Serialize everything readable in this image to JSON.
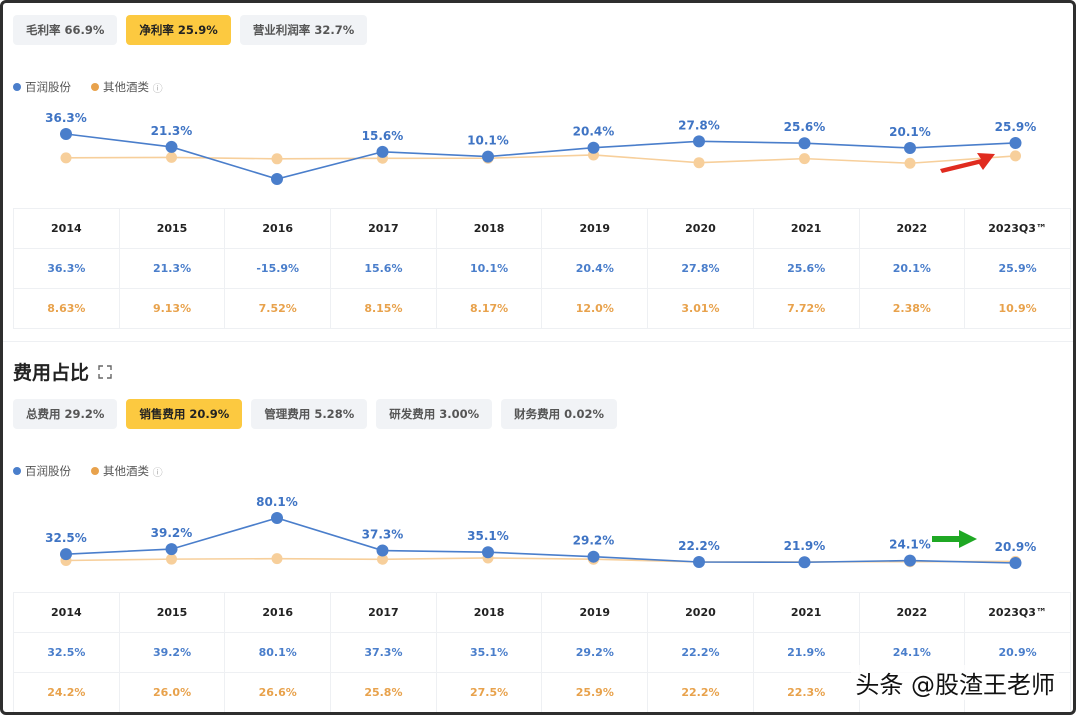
{
  "top": {
    "tabs": [
      {
        "label": "毛利率 66.9%",
        "active": false
      },
      {
        "label": "净利率 25.9%",
        "active": true
      },
      {
        "label": "营业利润率 32.7%",
        "active": false
      }
    ]
  },
  "bottom": {
    "title": "费用占比",
    "tabs": [
      {
        "label": "总费用 29.2%",
        "active": false
      },
      {
        "label": "销售费用 20.9%",
        "active": true
      },
      {
        "label": "管理费用 5.28%",
        "active": false
      },
      {
        "label": "研发费用 3.00%",
        "active": false
      },
      {
        "label": "财务费用 0.02%",
        "active": false
      }
    ]
  },
  "legend": {
    "s1": "百润股份",
    "s2": "其他酒类",
    "info_icon": "ⓘ"
  },
  "colors": {
    "s1": "#4a7ecb",
    "s2": "#f7cf9b",
    "s2_text": "#e8a24c",
    "active_tab": "#fcc940",
    "red_arrow": "#e02b1f",
    "green_arrow": "#1fa824"
  },
  "watermark": "头条 @股渣王老师",
  "chart_data": [
    {
      "type": "line",
      "categories": [
        "2014",
        "2015",
        "2016",
        "2017",
        "2018",
        "2019",
        "2020",
        "2021",
        "2022",
        "2023Q3™"
      ],
      "series": [
        {
          "name": "百润股份",
          "values": [
            36.3,
            21.3,
            -15.9,
            15.6,
            10.1,
            20.4,
            27.8,
            25.6,
            20.1,
            25.9
          ],
          "labels": [
            "36.3%",
            "21.3%",
            "-15.9%",
            "15.6%",
            "10.1%",
            "20.4%",
            "27.8%",
            "25.6%",
            "20.1%",
            "25.9%"
          ]
        },
        {
          "name": "其他酒类",
          "values": [
            8.63,
            9.13,
            7.52,
            8.15,
            8.17,
            12.0,
            3.01,
            7.72,
            2.38,
            10.9
          ],
          "labels": [
            "8.63%",
            "9.13%",
            "7.52%",
            "8.15%",
            "8.17%",
            "12.0%",
            "3.01%",
            "7.72%",
            "2.38%",
            "10.9%"
          ]
        }
      ],
      "point_labels": [
        "36.3%",
        "21.3%",
        "",
        "15.6%",
        "10.1%",
        "20.4%",
        "27.8%",
        "25.6%",
        "20.1%",
        "25.9%"
      ]
    },
    {
      "type": "line",
      "categories": [
        "2014",
        "2015",
        "2016",
        "2017",
        "2018",
        "2019",
        "2020",
        "2021",
        "2022",
        "2023Q3™"
      ],
      "series": [
        {
          "name": "百润股份",
          "values": [
            32.5,
            39.2,
            80.1,
            37.3,
            35.1,
            29.2,
            22.2,
            21.9,
            24.1,
            20.9
          ],
          "labels": [
            "32.5%",
            "39.2%",
            "80.1%",
            "37.3%",
            "35.1%",
            "29.2%",
            "22.2%",
            "21.9%",
            "24.1%",
            "20.9%"
          ]
        },
        {
          "name": "其他酒类",
          "values": [
            24.2,
            26.0,
            26.6,
            25.8,
            27.5,
            25.9,
            22.2,
            22.3,
            22.6,
            23.0
          ],
          "labels": [
            "24.2%",
            "26.0%",
            "26.6%",
            "25.8%",
            "27.5%",
            "25.9%",
            "22.2%",
            "22.3%",
            "",
            ""
          ]
        }
      ],
      "point_labels": [
        "32.5%",
        "39.2%",
        "80.1%",
        "37.3%",
        "35.1%",
        "29.2%",
        "22.2%",
        "21.9%",
        "24.1%",
        "20.9%"
      ]
    }
  ]
}
